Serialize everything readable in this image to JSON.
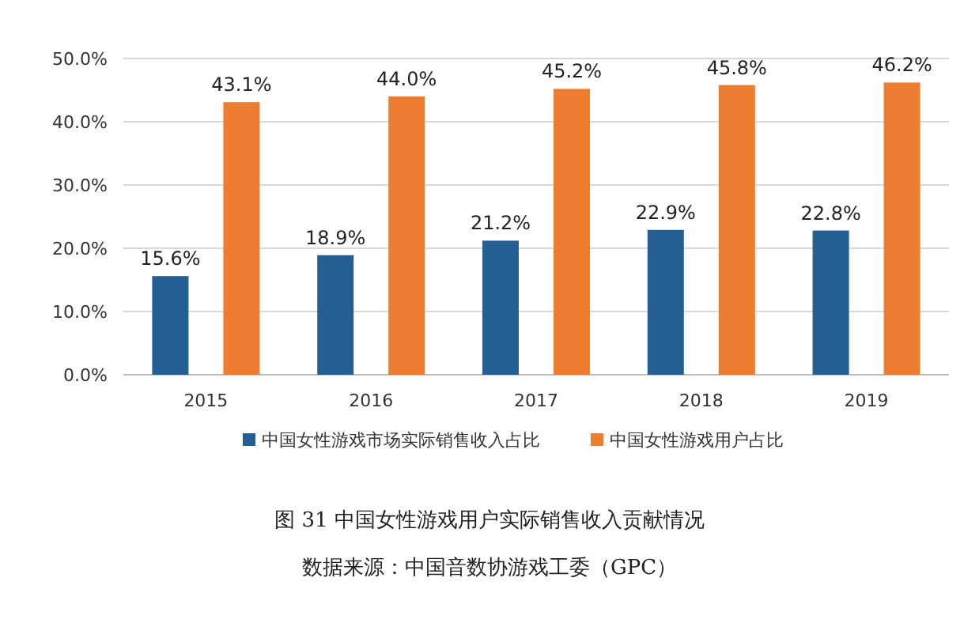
{
  "chart_data": {
    "type": "bar",
    "title": "图 31 中国女性游戏用户实际销售收入贡献情况",
    "categories": [
      "2015",
      "2016",
      "2017",
      "2018",
      "2019"
    ],
    "series": [
      {
        "name": "中国女性游戏市场实际销售收入占比",
        "color": "#255e91",
        "values": [
          15.6,
          18.9,
          21.2,
          22.9,
          22.8
        ],
        "value_labels": [
          "15.6%",
          "18.9%",
          "21.2%",
          "22.9%",
          "22.8%"
        ]
      },
      {
        "name": "中国女性游戏用户占比",
        "color": "#ed7d31",
        "values": [
          43.1,
          44.0,
          45.2,
          45.8,
          46.2
        ],
        "value_labels": [
          "43.1%",
          "44.0%",
          "45.2%",
          "45.8%",
          "46.2%"
        ]
      }
    ],
    "ylim": [
      0,
      50
    ],
    "yticks": [
      {
        "value": 0,
        "label": "0.0%"
      },
      {
        "value": 10,
        "label": "10.0%"
      },
      {
        "value": 20,
        "label": "20.0%"
      },
      {
        "value": 30,
        "label": "30.0%"
      },
      {
        "value": 40,
        "label": "40.0%"
      },
      {
        "value": 50,
        "label": "50.0%"
      }
    ],
    "grid": "y",
    "legend": "bottom",
    "annotations": [
      "数据来源：中国音数协游戏工委（GPC）"
    ]
  }
}
